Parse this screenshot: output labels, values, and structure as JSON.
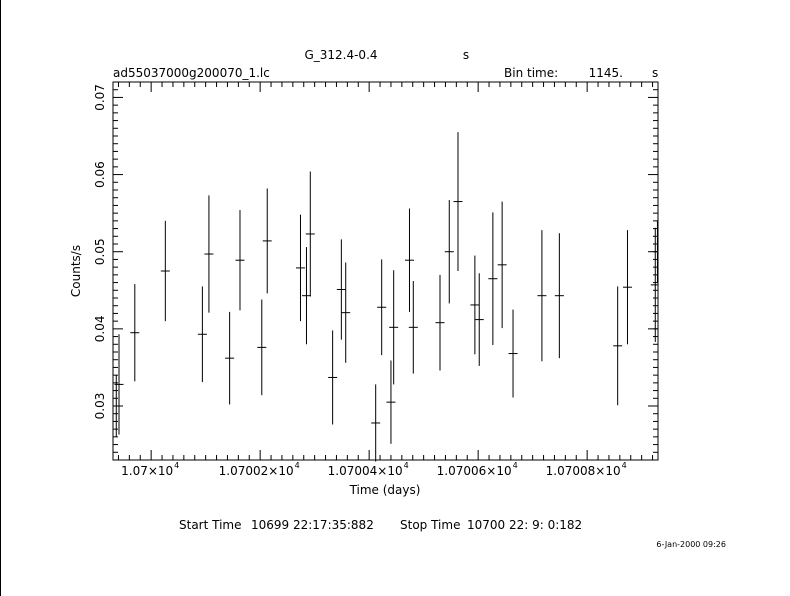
{
  "header": {
    "object": "G_312.4-0.4",
    "object_unit": "s",
    "filename": "ad55037000g200070_1.lc",
    "bin_time_label": "Bin time:",
    "bin_time_value": "1145.",
    "bin_time_unit": "s"
  },
  "footer": {
    "start_label": "Start Time",
    "start_value": "10699 22:17:35:882",
    "stop_label": "Stop Time",
    "stop_value": "10700 22: 9: 0:182",
    "date_stamp": "6-Jan-2000 09:26"
  },
  "chart_data": {
    "type": "scatter",
    "title": "G_312.4-0.4",
    "xlabel": "Time (days)",
    "ylabel": "Counts/s",
    "xlim": [
      10699.93,
      10700.93
    ],
    "ylim": [
      0.023,
      0.072
    ],
    "yticks": [
      0.03,
      0.04,
      0.05,
      0.06,
      0.07
    ],
    "ytick_labels": [
      "0.03",
      "0.04",
      "0.05",
      "0.06",
      "0.07"
    ],
    "xticks": [
      10700.0,
      10700.2,
      10700.4,
      10700.6,
      10700.8
    ],
    "xtick_labels": [
      "1.07×10",
      "1.07002×10",
      "1.07004×10",
      "1.07006×10",
      "1.07008×10"
    ],
    "xtick_exponent": "4",
    "points": [
      {
        "x": 10699.936,
        "y": 0.03,
        "err": 0.004
      },
      {
        "x": 10699.941,
        "y": 0.0328,
        "err": 0.0065
      },
      {
        "x": 10699.97,
        "y": 0.0395,
        "err": 0.0063
      },
      {
        "x": 10700.026,
        "y": 0.0475,
        "err": 0.0065
      },
      {
        "x": 10700.094,
        "y": 0.0393,
        "err": 0.0062
      },
      {
        "x": 10700.106,
        "y": 0.0497,
        "err": 0.0076
      },
      {
        "x": 10700.144,
        "y": 0.0362,
        "err": 0.006
      },
      {
        "x": 10700.163,
        "y": 0.0489,
        "err": 0.0065
      },
      {
        "x": 10700.203,
        "y": 0.0376,
        "err": 0.0062
      },
      {
        "x": 10700.213,
        "y": 0.0514,
        "err": 0.0068
      },
      {
        "x": 10700.274,
        "y": 0.0479,
        "err": 0.0069
      },
      {
        "x": 10700.285,
        "y": 0.0443,
        "err": 0.0063
      },
      {
        "x": 10700.292,
        "y": 0.0523,
        "err": 0.0081
      },
      {
        "x": 10700.333,
        "y": 0.0337,
        "err": 0.0061
      },
      {
        "x": 10700.349,
        "y": 0.0451,
        "err": 0.0065
      },
      {
        "x": 10700.357,
        "y": 0.0421,
        "err": 0.0065
      },
      {
        "x": 10700.412,
        "y": 0.0278,
        "err": 0.005
      },
      {
        "x": 10700.423,
        "y": 0.0428,
        "err": 0.0062
      },
      {
        "x": 10700.44,
        "y": 0.0305,
        "err": 0.0054
      },
      {
        "x": 10700.445,
        "y": 0.0402,
        "err": 0.0074
      },
      {
        "x": 10700.474,
        "y": 0.0489,
        "err": 0.0067
      },
      {
        "x": 10700.481,
        "y": 0.0402,
        "err": 0.006
      },
      {
        "x": 10700.53,
        "y": 0.0408,
        "err": 0.0062
      },
      {
        "x": 10700.547,
        "y": 0.05,
        "err": 0.0067
      },
      {
        "x": 10700.563,
        "y": 0.0565,
        "err": 0.009
      },
      {
        "x": 10700.594,
        "y": 0.0431,
        "err": 0.0064
      },
      {
        "x": 10700.602,
        "y": 0.0412,
        "err": 0.006
      },
      {
        "x": 10700.627,
        "y": 0.0465,
        "err": 0.0086
      },
      {
        "x": 10700.644,
        "y": 0.0483,
        "err": 0.0082
      },
      {
        "x": 10700.664,
        "y": 0.0368,
        "err": 0.0057
      },
      {
        "x": 10700.717,
        "y": 0.0443,
        "err": 0.0085
      },
      {
        "x": 10700.749,
        "y": 0.0443,
        "err": 0.0081
      },
      {
        "x": 10700.856,
        "y": 0.0378,
        "err": 0.0077
      },
      {
        "x": 10700.874,
        "y": 0.0454,
        "err": 0.0074
      },
      {
        "x": 10700.925,
        "y": 0.0457,
        "err": 0.0074
      },
      {
        "x": 10700.929,
        "y": 0.05,
        "err": 0.004
      },
      {
        "x": 10700.93,
        "y": 0.04,
        "err": 0.003
      }
    ]
  }
}
